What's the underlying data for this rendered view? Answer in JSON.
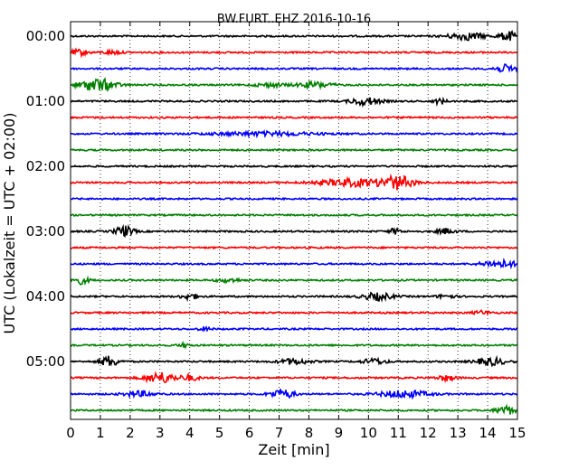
{
  "chart_data": {
    "type": "line",
    "title": "BW.FURT..EHZ 2016-10-16",
    "xlabel": "Zeit  [min]",
    "ylabel": "UTC (Lokalzeit = UTC + 02:00)",
    "xlim": [
      0,
      15
    ],
    "x_ticks": [
      0,
      1,
      2,
      3,
      4,
      5,
      6,
      7,
      8,
      9,
      10,
      11,
      12,
      13,
      14,
      15
    ],
    "y_tick_labels": [
      "00:00",
      "01:00",
      "02:00",
      "03:00",
      "04:00",
      "05:00"
    ],
    "grid": "vertical dotted",
    "trace_interval_min": 15,
    "colors": [
      "#000000",
      "#ff0000",
      "#0000ff",
      "#008000"
    ],
    "traces": [
      {
        "bursts": [
          [
            13.3,
            0.6,
            4
          ],
          [
            14.7,
            0.3,
            5
          ]
        ]
      },
      {
        "bursts": [
          [
            0.3,
            0.3,
            3
          ],
          [
            1.4,
            0.3,
            2
          ]
        ]
      },
      {
        "bursts": [
          [
            14.6,
            0.4,
            4
          ]
        ]
      },
      {
        "bursts": [
          [
            0.9,
            0.6,
            7
          ],
          [
            8.2,
            0.6,
            3
          ],
          [
            6.7,
            0.5,
            2
          ]
        ]
      },
      {
        "bursts": [
          [
            9.9,
            0.5,
            4
          ],
          [
            12.4,
            0.2,
            3
          ]
        ]
      },
      {
        "bursts": []
      },
      {
        "bursts": [
          [
            6.5,
            1.8,
            2
          ]
        ]
      },
      {
        "bursts": []
      },
      {
        "bursts": []
      },
      {
        "bursts": [
          [
            9.5,
            1.2,
            4
          ],
          [
            11.0,
            0.5,
            7
          ]
        ]
      },
      {
        "bursts": []
      },
      {
        "bursts": []
      },
      {
        "bursts": [
          [
            1.8,
            0.3,
            6
          ],
          [
            10.9,
            0.2,
            3
          ],
          [
            12.6,
            0.3,
            3
          ]
        ]
      },
      {
        "bursts": []
      },
      {
        "bursts": [
          [
            14.4,
            0.6,
            4
          ]
        ]
      },
      {
        "bursts": [
          [
            0.3,
            0.3,
            4
          ],
          [
            5.3,
            0.4,
            2
          ]
        ]
      },
      {
        "bursts": [
          [
            4.0,
            0.3,
            3
          ],
          [
            10.3,
            0.5,
            4
          ],
          [
            12.6,
            0.3,
            2
          ]
        ]
      },
      {
        "bursts": [
          [
            13.8,
            0.3,
            2
          ]
        ]
      },
      {
        "bursts": [
          [
            4.5,
            0.2,
            2
          ]
        ]
      },
      {
        "bursts": [
          [
            3.8,
            0.2,
            2
          ]
        ]
      },
      {
        "bursts": [
          [
            1.3,
            0.3,
            6
          ],
          [
            7.5,
            0.5,
            3
          ],
          [
            10.2,
            0.4,
            3
          ],
          [
            14.1,
            0.5,
            4
          ]
        ]
      },
      {
        "bursts": [
          [
            3.0,
            0.5,
            6
          ],
          [
            4.0,
            0.3,
            3
          ],
          [
            12.6,
            0.3,
            3
          ]
        ]
      },
      {
        "bursts": [
          [
            2.3,
            0.5,
            3
          ],
          [
            7.1,
            0.4,
            5
          ],
          [
            11.2,
            0.8,
            4
          ]
        ]
      },
      {
        "bursts": [
          [
            14.6,
            0.3,
            5
          ]
        ]
      }
    ]
  }
}
